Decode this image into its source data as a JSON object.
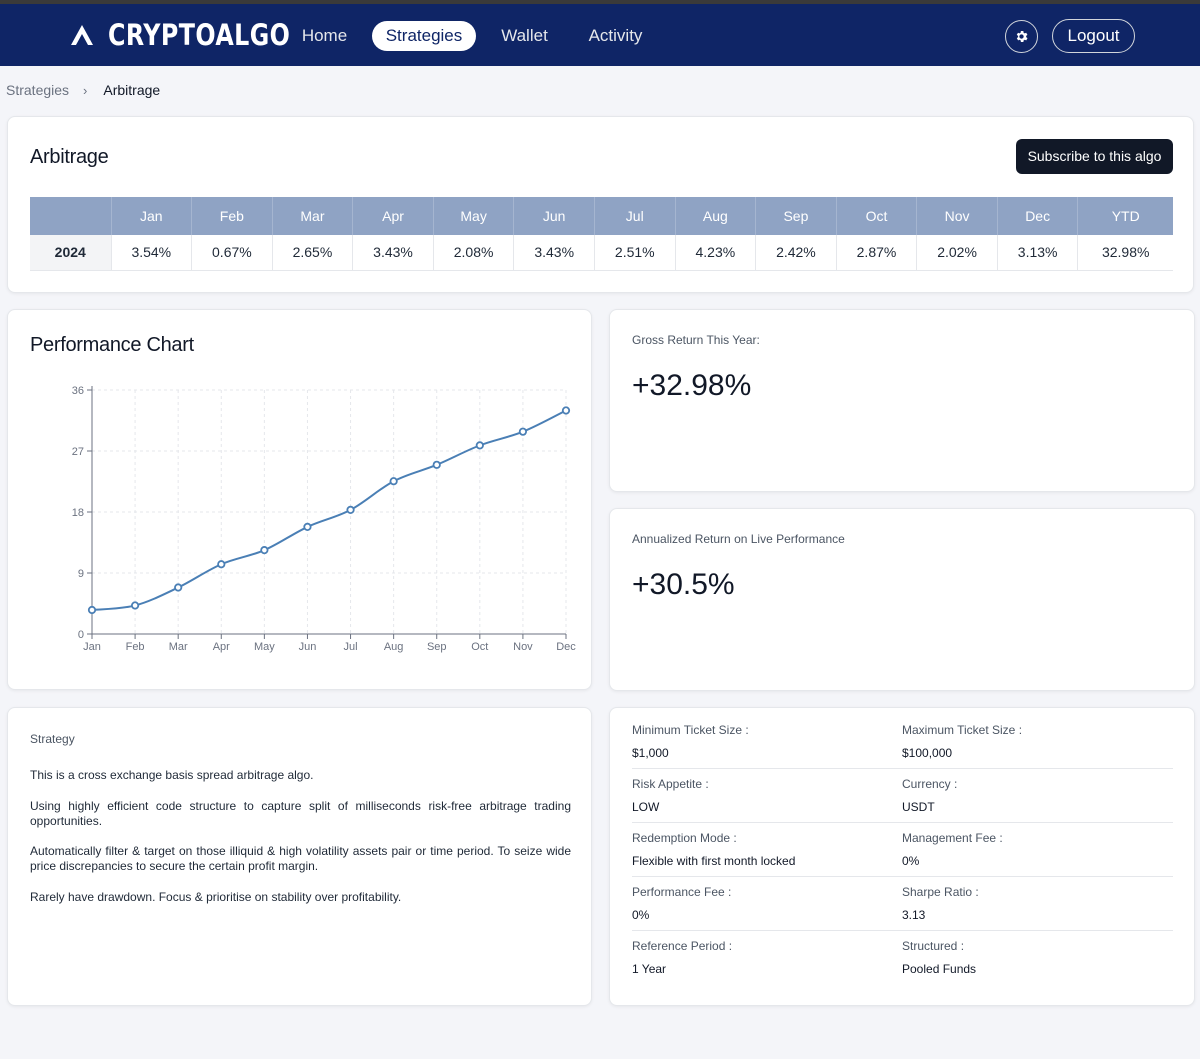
{
  "nav": {
    "brand": "CRYPTOALGO",
    "links": [
      "Home",
      "Strategies",
      "Wallet",
      "Activity"
    ],
    "logout": "Logout"
  },
  "breadcrumb": {
    "parent": "Strategies",
    "current": "Arbitrage"
  },
  "returns": {
    "title": "Arbitrage",
    "subscribe": "Subscribe to this algo",
    "headers": [
      "Jan",
      "Feb",
      "Mar",
      "Apr",
      "May",
      "Jun",
      "Jul",
      "Aug",
      "Sep",
      "Oct",
      "Nov",
      "Dec",
      "YTD"
    ],
    "row": {
      "year": "2024",
      "values": [
        "3.54%",
        "0.67%",
        "2.65%",
        "3.43%",
        "2.08%",
        "3.43%",
        "2.51%",
        "4.23%",
        "2.42%",
        "2.87%",
        "2.02%",
        "3.13%",
        "32.98%"
      ]
    }
  },
  "chart_title": "Performance Chart",
  "chart_data": {
    "type": "line",
    "title": "Performance Chart",
    "categories": [
      "Jan",
      "Feb",
      "Mar",
      "Apr",
      "May",
      "Jun",
      "Jul",
      "Aug",
      "Sep",
      "Oct",
      "Nov",
      "Dec"
    ],
    "values": [
      3.54,
      4.21,
      6.86,
      10.29,
      12.37,
      15.8,
      18.31,
      22.54,
      24.96,
      27.83,
      29.85,
      32.98
    ],
    "ylim": [
      0,
      36
    ],
    "yticks": [
      0,
      9,
      18,
      27,
      36
    ],
    "grid": true,
    "xlabel": "",
    "ylabel": "",
    "color": "#4a7fb5"
  },
  "stats": {
    "gross": {
      "label": "Gross Return This Year:",
      "value": "+32.98%"
    },
    "annualized": {
      "label": "Annualized Return on Live Performance",
      "value": "+30.5%"
    }
  },
  "strategy": {
    "label": "Strategy",
    "paragraphs": [
      "This is a cross exchange basis spread arbitrage algo.",
      "Using highly efficient code structure to capture split of milliseconds risk-free arbitrage trading opportunities.",
      "Automatically filter & target on those illiquid & high volatility assets pair or time period. To seize wide price discrepancies to secure the certain profit margin.",
      "Rarely have drawdown. Focus & prioritise on stability over profitability."
    ]
  },
  "details": [
    {
      "label": "Minimum Ticket Size :",
      "value": "$1,000"
    },
    {
      "label": "Maximum Ticket Size :",
      "value": "$100,000"
    },
    {
      "label": "Risk Appetite :",
      "value": "LOW"
    },
    {
      "label": "Currency :",
      "value": "USDT"
    },
    {
      "label": "Redemption Mode :",
      "value": "Flexible with first month locked"
    },
    {
      "label": "Management Fee :",
      "value": "0%"
    },
    {
      "label": "Performance Fee :",
      "value": "0%"
    },
    {
      "label": "Sharpe Ratio :",
      "value": "3.13"
    },
    {
      "label": "Reference Period :",
      "value": "1 Year"
    },
    {
      "label": "Structured :",
      "value": "Pooled Funds"
    }
  ],
  "icons": {
    "logo": "logo-icon",
    "settings": "gear-icon",
    "breadcrumb_sep": "chevron-right-icon"
  }
}
